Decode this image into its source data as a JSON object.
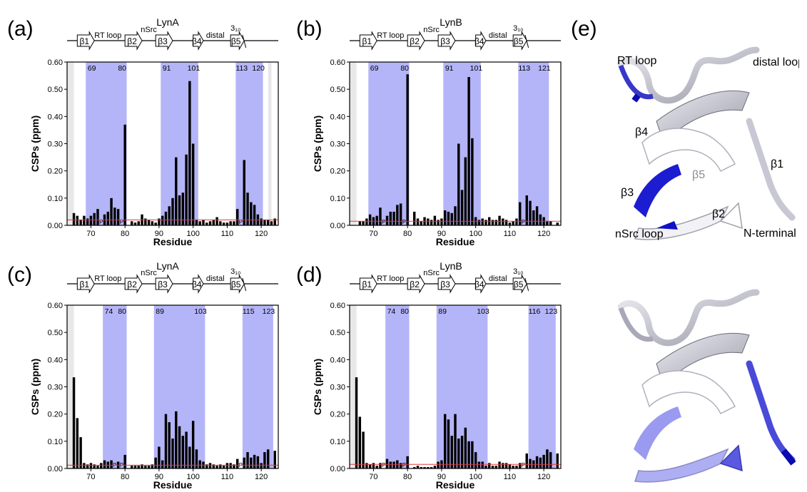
{
  "figure": {
    "panel_letters": [
      "(a)",
      "(b)",
      "(c)",
      "(d)",
      "(e)"
    ],
    "colors": {
      "shade": "#8c8cf5",
      "bar": "#000000",
      "threshold": "#e23a3a",
      "edge_gray": "#e8e8e8"
    },
    "structure_labels": {
      "rt_loop": "RT loop",
      "distal_loop": "distal loop",
      "b4": "β4",
      "b1": "β1",
      "b5": "β5",
      "b3": "β3",
      "b2": "β2",
      "nsrc_loop": "nSrc loop",
      "n_terminal": "N-terminal"
    }
  },
  "chart_data": [
    {
      "type": "bar",
      "panel": "(a)",
      "title": "LynA",
      "xlabel": "Residue",
      "ylabel": "CSPs (ppm)",
      "xlim": [
        63,
        125
      ],
      "ylim": [
        0,
        0.6
      ],
      "xticks": [
        70,
        80,
        90,
        100,
        110,
        120
      ],
      "yticks": [
        "0.00",
        "0.10",
        "0.20",
        "0.30",
        "0.40",
        "0.50",
        "0.60"
      ],
      "threshold": 0.02,
      "edge_regions": [
        [
          63,
          65
        ],
        [
          122,
          123
        ]
      ],
      "shaded_regions": [
        [
          69,
          80
        ],
        [
          91,
          101
        ],
        [
          113,
          120
        ]
      ],
      "region_labels": [
        "69",
        "80",
        "91",
        "101",
        "113",
        "120"
      ],
      "secondary_structure": [
        "β1",
        "RT loop",
        "β2",
        "nSrc",
        "β3",
        "distal",
        "β4",
        "3₁₀",
        "β5"
      ],
      "proline_labels": [
        "P",
        "P",
        "P"
      ],
      "proline_residues": [
        73,
        79,
        114
      ],
      "residues": [
        65,
        66,
        67,
        68,
        69,
        70,
        71,
        72,
        74,
        75,
        76,
        77,
        78,
        80,
        82,
        83,
        84,
        85,
        86,
        87,
        88,
        89,
        90,
        91,
        92,
        93,
        94,
        95,
        96,
        97,
        98,
        99,
        100,
        101,
        102,
        103,
        104,
        105,
        106,
        107,
        108,
        109,
        110,
        111,
        112,
        113,
        115,
        116,
        117,
        118,
        119,
        120,
        121,
        122,
        123,
        124
      ],
      "values": [
        0.045,
        0.035,
        0.02,
        0.035,
        0.025,
        0.035,
        0.045,
        0.06,
        0.04,
        0.05,
        0.1,
        0.065,
        0.06,
        0.37,
        0.015,
        0.01,
        0.015,
        0.04,
        0.025,
        0.02,
        0.015,
        0.01,
        0.025,
        0.035,
        0.05,
        0.07,
        0.1,
        0.25,
        0.11,
        0.12,
        0.26,
        0.53,
        0.3,
        0.02,
        0.015,
        0.02,
        0.01,
        0.015,
        0.02,
        0.03,
        0.015,
        0.01,
        0.01,
        0.015,
        0.015,
        0.06,
        0.24,
        0.12,
        0.085,
        0.075,
        0.04,
        0.025,
        0.02,
        0.02,
        0.015,
        0.025
      ]
    },
    {
      "type": "bar",
      "panel": "(b)",
      "title": "LynB",
      "xlabel": "Residue",
      "ylabel": "CSPs (ppm)",
      "xlim": [
        63,
        125
      ],
      "ylim": [
        0,
        0.6
      ],
      "xticks": [
        70,
        80,
        90,
        100,
        110,
        120
      ],
      "yticks": [
        "0.00",
        "0.10",
        "0.20",
        "0.30",
        "0.40",
        "0.50",
        "0.60"
      ],
      "threshold": 0.015,
      "edge_regions": [
        [
          63,
          65
        ]
      ],
      "shaded_regions": [
        [
          69,
          80
        ],
        [
          91,
          101
        ],
        [
          113,
          121
        ]
      ],
      "region_labels": [
        "69",
        "80",
        "91",
        "101",
        "113",
        "121"
      ],
      "secondary_structure": [
        "β1",
        "RT loop",
        "β2",
        "nSrc",
        "β3",
        "distal",
        "β4",
        "3₁₀",
        "β5"
      ],
      "proline_labels": [
        "P",
        "P",
        "P"
      ],
      "proline_residues": [
        73,
        79,
        114
      ],
      "residues": [
        66,
        67,
        68,
        69,
        70,
        71,
        72,
        74,
        75,
        76,
        77,
        78,
        80,
        82,
        83,
        84,
        85,
        86,
        87,
        88,
        89,
        90,
        91,
        92,
        93,
        94,
        95,
        96,
        97,
        98,
        99,
        100,
        101,
        102,
        103,
        104,
        105,
        106,
        107,
        108,
        109,
        110,
        111,
        112,
        113,
        115,
        116,
        117,
        118,
        119,
        120,
        121,
        122,
        124
      ],
      "values": [
        0.015,
        0.015,
        0.025,
        0.04,
        0.03,
        0.035,
        0.065,
        0.035,
        0.05,
        0.05,
        0.075,
        0.08,
        0.555,
        0.05,
        0.025,
        0.015,
        0.03,
        0.025,
        0.02,
        0.035,
        0.02,
        0.025,
        0.055,
        0.05,
        0.045,
        0.07,
        0.3,
        0.13,
        0.25,
        0.545,
        0.32,
        0.03,
        0.02,
        0.025,
        0.02,
        0.03,
        0.02,
        0.02,
        0.035,
        0.025,
        0.02,
        0.01,
        0.015,
        0.025,
        0.085,
        0.11,
        0.09,
        0.055,
        0.07,
        0.04,
        0.03,
        0.015,
        0.015,
        0.01
      ]
    },
    {
      "type": "bar",
      "panel": "(c)",
      "title": "LynA",
      "xlabel": "Residue",
      "ylabel": "CSPs (ppm)",
      "xlim": [
        63,
        125
      ],
      "ylim": [
        0,
        0.6
      ],
      "xticks": [
        70,
        80,
        90,
        100,
        110,
        120
      ],
      "yticks": [
        "0.00",
        "0.10",
        "0.20",
        "0.30",
        "0.40",
        "0.50",
        "0.60"
      ],
      "threshold": 0.012,
      "edge_regions": [
        [
          63,
          65
        ]
      ],
      "shaded_regions": [
        [
          74,
          80
        ],
        [
          89,
          103
        ],
        [
          115,
          123
        ]
      ],
      "region_labels": [
        "74",
        "80",
        "89",
        "103",
        "115",
        "123"
      ],
      "secondary_structure": [
        "β1",
        "RT loop",
        "β2",
        "nSrc",
        "β3",
        "distal",
        "β4",
        "3₁₀",
        "β5"
      ],
      "proline_labels": [
        "P",
        "P",
        "P"
      ],
      "proline_residues": [
        77,
        79,
        114
      ],
      "residues": [
        65,
        66,
        67,
        68,
        69,
        70,
        71,
        72,
        73,
        74,
        75,
        76,
        78,
        80,
        82,
        83,
        84,
        85,
        86,
        87,
        88,
        89,
        90,
        91,
        92,
        93,
        94,
        95,
        96,
        97,
        98,
        99,
        100,
        101,
        102,
        103,
        104,
        105,
        106,
        107,
        108,
        109,
        110,
        111,
        112,
        113,
        115,
        116,
        117,
        118,
        119,
        120,
        121,
        122,
        124
      ],
      "values": [
        0.335,
        0.185,
        0.115,
        0.02,
        0.015,
        0.02,
        0.015,
        0.01,
        0.02,
        0.03,
        0.025,
        0.03,
        0.025,
        0.05,
        0.01,
        0.01,
        0.01,
        0.015,
        0.01,
        0.01,
        0.015,
        0.04,
        0.08,
        0.03,
        0.2,
        0.17,
        0.11,
        0.21,
        0.155,
        0.12,
        0.135,
        0.08,
        0.175,
        0.07,
        0.03,
        0.025,
        0.015,
        0.02,
        0.015,
        0.01,
        0.015,
        0.01,
        0.02,
        0.02,
        0.015,
        0.035,
        0.04,
        0.06,
        0.04,
        0.05,
        0.045,
        0.02,
        0.06,
        0.07,
        0.065
      ]
    },
    {
      "type": "bar",
      "panel": "(d)",
      "title": "LynB",
      "xlabel": "Residue",
      "ylabel": "CSPs (ppm)",
      "xlim": [
        63,
        125
      ],
      "ylim": [
        0,
        0.6
      ],
      "xticks": [
        70,
        80,
        90,
        100,
        110,
        120
      ],
      "yticks": [
        "0.00",
        "0.10",
        "0.20",
        "0.30",
        "0.40",
        "0.50",
        "0.60"
      ],
      "threshold": 0.015,
      "edge_regions": [
        [
          63,
          65
        ]
      ],
      "shaded_regions": [
        [
          74,
          80
        ],
        [
          89,
          103
        ],
        [
          116,
          123
        ]
      ],
      "region_labels": [
        "74",
        "80",
        "89",
        "103",
        "116",
        "123"
      ],
      "secondary_structure": [
        "β1",
        "RT loop",
        "β2",
        "nSrc",
        "β3",
        "distal",
        "β4",
        "3₁₀",
        "β5"
      ],
      "proline_labels": [
        "P",
        "P",
        "P"
      ],
      "proline_residues": [
        73,
        79,
        114
      ],
      "residues": [
        65,
        66,
        67,
        68,
        69,
        70,
        71,
        72,
        74,
        75,
        76,
        77,
        78,
        80,
        82,
        83,
        84,
        85,
        86,
        87,
        88,
        89,
        90,
        91,
        92,
        93,
        94,
        95,
        96,
        97,
        98,
        99,
        100,
        101,
        102,
        103,
        104,
        105,
        106,
        107,
        108,
        109,
        110,
        111,
        112,
        113,
        115,
        116,
        117,
        118,
        119,
        120,
        121,
        122,
        124
      ],
      "values": [
        0.335,
        0.19,
        0.135,
        0.02,
        0.015,
        0.02,
        0.01,
        0.02,
        0.035,
        0.025,
        0.025,
        0.03,
        0.02,
        0.045,
        0.005,
        0.01,
        0.005,
        0.005,
        0.005,
        0.005,
        0.01,
        0.025,
        0.03,
        0.2,
        0.18,
        0.12,
        0.2,
        0.11,
        0.12,
        0.15,
        0.1,
        0.1,
        0.06,
        0.025,
        0.025,
        0.01,
        0.02,
        0.01,
        0.01,
        0.025,
        0.02,
        0.02,
        0.015,
        0.01,
        0.01,
        0.02,
        0.055,
        0.035,
        0.03,
        0.045,
        0.04,
        0.05,
        0.07,
        0.06,
        0.055
      ]
    }
  ]
}
